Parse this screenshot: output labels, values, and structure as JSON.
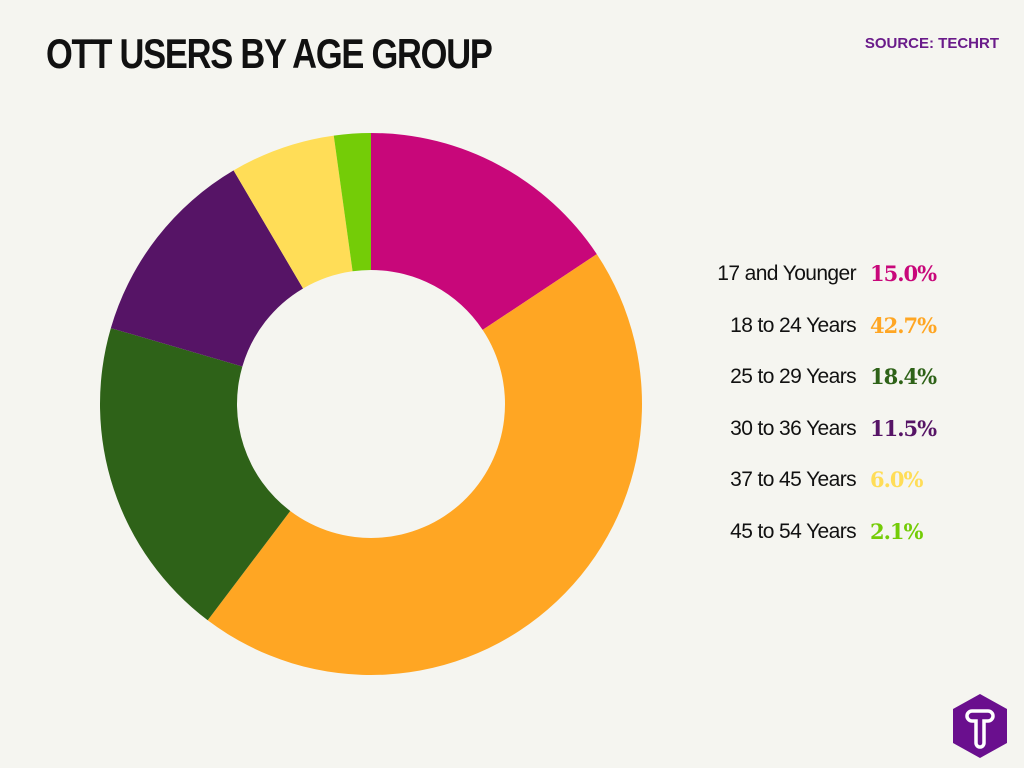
{
  "title": "OTT USERS BY AGE GROUP",
  "source": "SOURCE: TECHRT",
  "logo": {
    "letter": "T",
    "color": "#6A0F8E"
  },
  "chart_data": {
    "type": "pie",
    "donut": true,
    "title": "OTT USERS BY AGE GROUP",
    "legend_position": "right",
    "categories": [
      "17 and Younger",
      "18 to 24 Years",
      "25 to 29 Years",
      "30 to 36 Years",
      "37 to 45 Years",
      "45 to 54 Years"
    ],
    "values": [
      15.0,
      42.7,
      18.4,
      11.5,
      6.0,
      2.1
    ],
    "value_labels": [
      "15.0%",
      "42.7%",
      "18.4%",
      "11.5%",
      "6.0%",
      "2.1%"
    ],
    "colors": [
      "#C8077A",
      "#FFA623",
      "#2E6218",
      "#561466",
      "#FFDD57",
      "#74CC07"
    ]
  }
}
